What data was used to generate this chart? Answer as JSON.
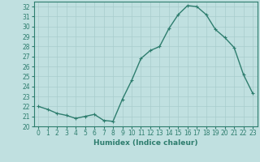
{
  "x": [
    0,
    1,
    2,
    3,
    4,
    5,
    6,
    7,
    8,
    9,
    10,
    11,
    12,
    13,
    14,
    15,
    16,
    17,
    18,
    19,
    20,
    21,
    22,
    23
  ],
  "y": [
    22.0,
    21.7,
    21.3,
    21.1,
    20.8,
    21.0,
    21.2,
    20.6,
    20.5,
    22.7,
    24.6,
    26.8,
    27.6,
    28.0,
    29.8,
    31.2,
    32.1,
    32.0,
    31.2,
    29.7,
    28.9,
    27.9,
    25.2,
    23.3
  ],
  "line_color": "#2e7d6e",
  "bg_color": "#c0e0e0",
  "grid_color": "#a8cccc",
  "xlabel": "Humidex (Indice chaleur)",
  "xlim": [
    -0.5,
    23.5
  ],
  "ylim": [
    20,
    32.5
  ],
  "yticks": [
    20,
    21,
    22,
    23,
    24,
    25,
    26,
    27,
    28,
    29,
    30,
    31,
    32
  ],
  "xticks": [
    0,
    1,
    2,
    3,
    4,
    5,
    6,
    7,
    8,
    9,
    10,
    11,
    12,
    13,
    14,
    15,
    16,
    17,
    18,
    19,
    20,
    21,
    22,
    23
  ],
  "tick_fontsize": 5.5,
  "label_fontsize": 6.5,
  "line_width": 1.0,
  "marker": "+",
  "marker_size": 3.5,
  "marker_edge_width": 0.8
}
